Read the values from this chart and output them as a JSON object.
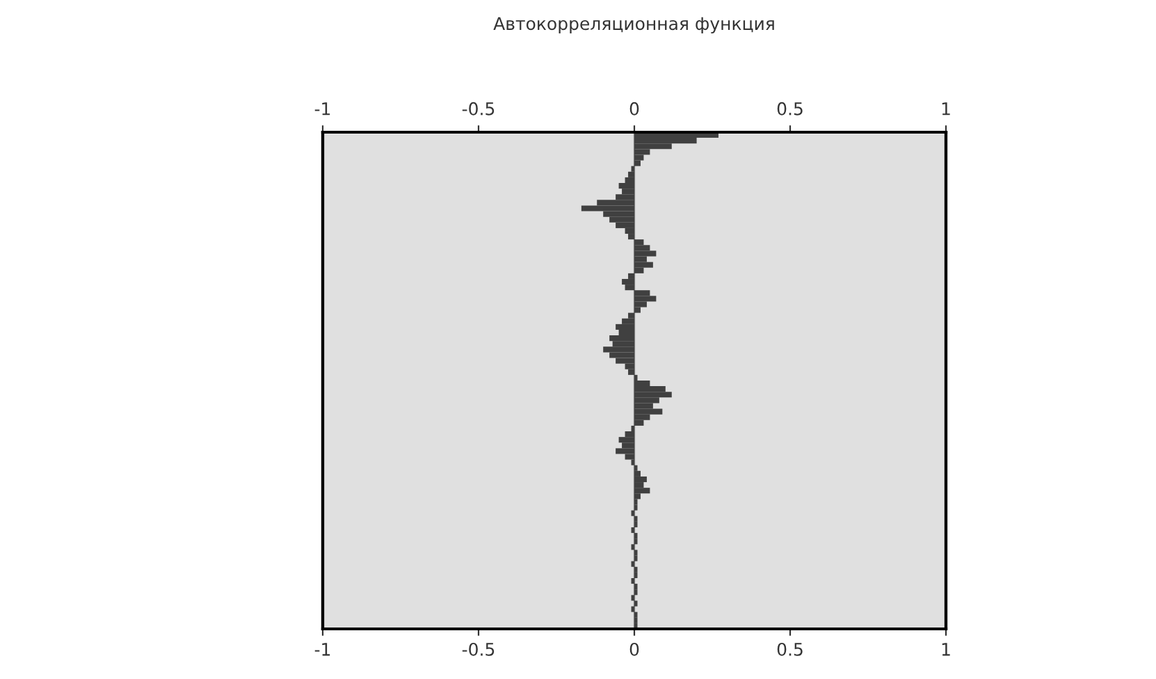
{
  "chart_data": {
    "type": "bar",
    "orientation": "horizontal",
    "title": "Автокорреляционная функция",
    "categories": [
      null,
      null,
      null,
      null,
      null,
      null,
      null,
      null,
      null,
      null,
      null,
      null,
      null,
      null,
      null,
      null,
      null,
      null,
      null,
      null,
      null,
      null,
      null,
      null,
      null,
      null,
      null,
      null,
      null,
      null,
      null,
      null,
      null,
      null,
      null,
      null,
      null,
      null,
      null,
      null,
      null,
      null,
      null,
      null,
      null,
      null,
      null,
      null,
      null,
      null,
      null,
      null,
      null,
      null,
      null,
      null,
      null,
      null,
      null,
      null,
      null,
      null,
      null,
      null,
      null,
      null,
      null,
      null,
      null,
      null,
      null,
      null,
      null,
      null,
      null,
      null,
      null,
      null,
      null,
      null,
      null,
      null,
      null,
      null,
      null,
      null,
      null,
      null
    ],
    "values": [
      0.27,
      0.2,
      0.12,
      0.05,
      0.03,
      0.02,
      -0.01,
      -0.02,
      -0.03,
      -0.05,
      -0.04,
      -0.06,
      -0.12,
      -0.17,
      -0.1,
      -0.08,
      -0.06,
      -0.03,
      -0.02,
      0.03,
      0.05,
      0.07,
      0.04,
      0.06,
      0.03,
      -0.02,
      -0.04,
      -0.03,
      0.05,
      0.07,
      0.04,
      0.02,
      -0.02,
      -0.04,
      -0.06,
      -0.05,
      -0.08,
      -0.07,
      -0.1,
      -0.08,
      -0.06,
      -0.03,
      -0.02,
      0.01,
      0.05,
      0.1,
      0.12,
      0.08,
      0.06,
      0.09,
      0.05,
      0.03,
      -0.01,
      -0.03,
      -0.05,
      -0.04,
      -0.06,
      -0.03,
      -0.01,
      0.01,
      0.02,
      0.04,
      0.03,
      0.05,
      0.02,
      0.01,
      0.01,
      -0.01,
      0.01,
      0.01,
      -0.01,
      0.01,
      0.01,
      -0.01,
      0.01,
      0.01,
      -0.01,
      0.01,
      0.01,
      -0.01,
      0.01,
      0.01,
      -0.01,
      0.01,
      -0.01,
      0.01,
      0.01,
      0.01
    ],
    "color": "#404040",
    "xlim": [
      -1,
      1
    ],
    "xticks": [
      -1,
      -0.5,
      0,
      0.5,
      1
    ],
    "x2lim": [
      -1,
      1
    ],
    "x2ticks": [
      -1,
      -0.5,
      0,
      0.5,
      1
    ],
    "ref_lines": [
      {
        "axis": "x",
        "value": 0,
        "color": "#808080"
      }
    ],
    "grid": false
  }
}
